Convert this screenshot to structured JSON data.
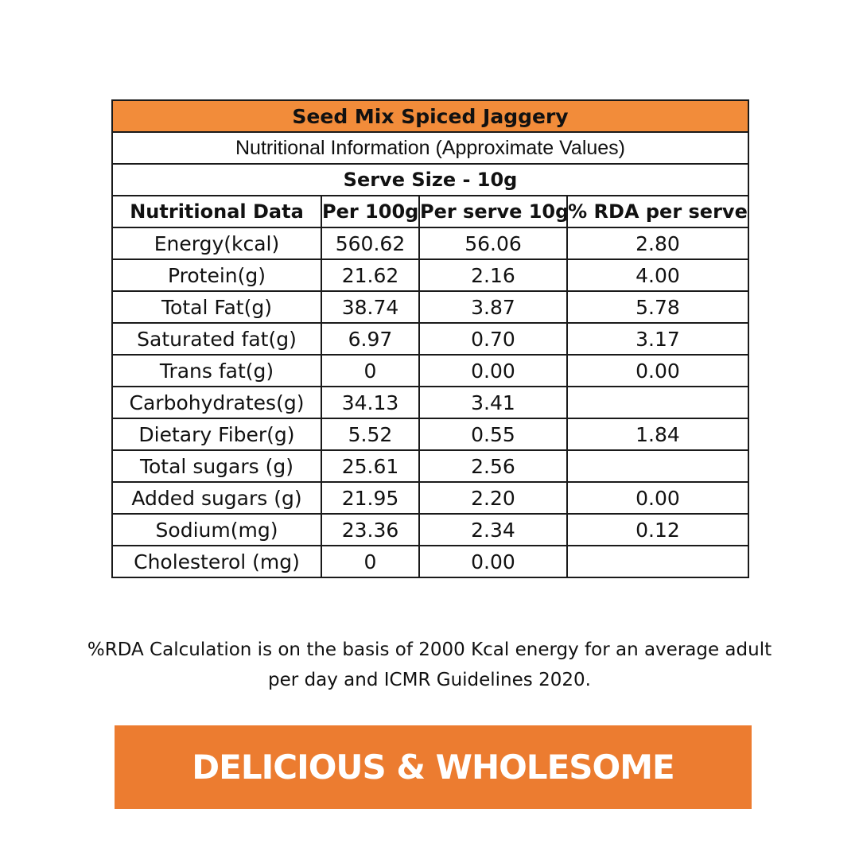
{
  "title": "Seed Mix Spiced Jaggery",
  "subtitle": "Nutritional Information (Approximate Values)",
  "serve_size": "Serve Size - 10g",
  "headers": [
    "Nutritional Data",
    "Per 100g",
    "Per serve 10g",
    "% RDA per serve"
  ],
  "rows": [
    [
      "Energy(kcal)",
      "560.62",
      "56.06",
      "2.80"
    ],
    [
      "Protein(g)",
      "21.62",
      "2.16",
      "4.00"
    ],
    [
      "Total Fat(g)",
      "38.74",
      "3.87",
      "5.78"
    ],
    [
      "Saturated fat(g)",
      "6.97",
      "0.70",
      "3.17"
    ],
    [
      "Trans fat(g)",
      "0",
      "0.00",
      "0.00"
    ],
    [
      "Carbohydrates(g)",
      "34.13",
      "3.41",
      ""
    ],
    [
      "Dietary Fiber(g)",
      "5.52",
      "0.55",
      "1.84"
    ],
    [
      "Total sugars (g)",
      "25.61",
      "2.56",
      ""
    ],
    [
      "Added sugars (g)",
      "21.95",
      "2.20",
      "0.00"
    ],
    [
      "Sodium(mg)",
      "23.36",
      "2.34",
      "0.12"
    ],
    [
      "Cholesterol (mg)",
      "0",
      "0.00",
      ""
    ]
  ],
  "footnote_line1": "%RDA Calculation is on the basis of 2000 Kcal energy for an average adult",
  "footnote_line2": "per day and ICMR Guidelines 2020.",
  "banner_text": "DELICIOUS & WHOLESOME",
  "colors": {
    "title_bg": "#f28c3a",
    "banner_bg": "#ec7c30",
    "banner_text": "#ffffff"
  }
}
